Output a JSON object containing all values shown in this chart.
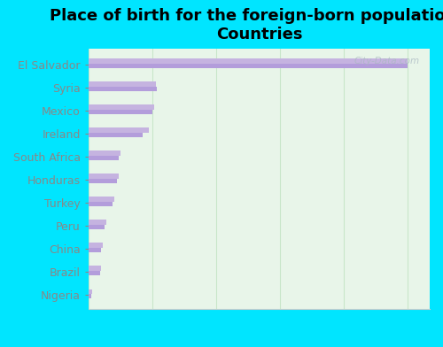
{
  "title": "Place of birth for the foreign-born population -\nCountries",
  "categories": [
    "El Salvador",
    "Syria",
    "Mexico",
    "Ireland",
    "South Africa",
    "Honduras",
    "Turkey",
    "Peru",
    "China",
    "Brazil",
    "Nigeria"
  ],
  "values_top": [
    100,
    21,
    20.5,
    19,
    10,
    9.5,
    8,
    5.5,
    4.5,
    4,
    1
  ],
  "values_bot": [
    100,
    21.5,
    20,
    17,
    9.5,
    9,
    7.5,
    5,
    4,
    3.5,
    0.8
  ],
  "bar_color": "#c5b3e0",
  "bar_color2": "#b39ddb",
  "background_color": "#00e5ff",
  "plot_bg_color": "#e8f5e9",
  "xlim": [
    0,
    107
  ],
  "xticks": [
    0,
    20,
    40,
    60,
    80,
    100
  ],
  "title_fontsize": 13,
  "label_fontsize": 9,
  "tick_fontsize": 9,
  "tick_color": "#00e5ff",
  "label_color": "#888888",
  "watermark": "City-Data.com"
}
